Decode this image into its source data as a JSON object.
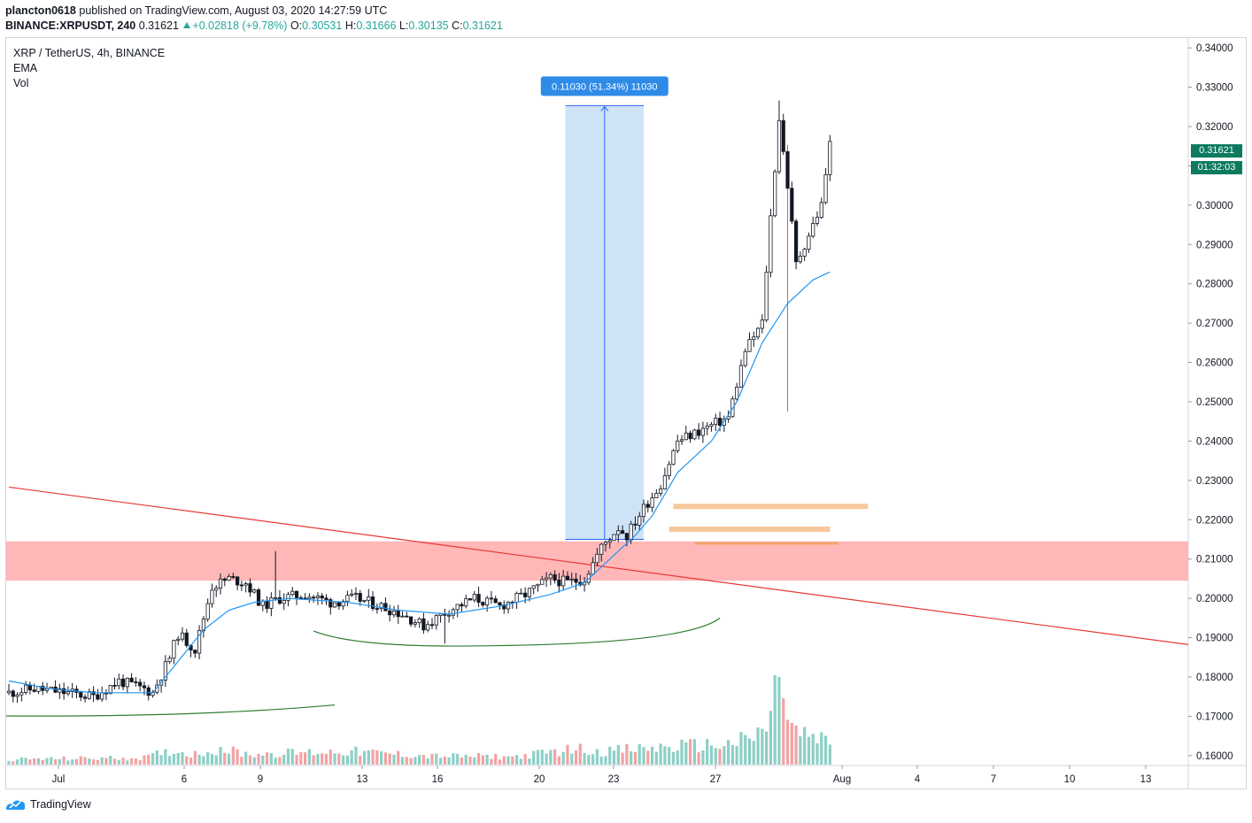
{
  "header": {
    "user": "plancton0618",
    "published": "published on TradingView.com, August 03, 2020 14:27:59 UTC",
    "symbol": "BINANCE:XRPUSDT, 240",
    "last": "0.31621",
    "change": "+0.02818 (+9.78%)",
    "o_label": "O:",
    "o_value": "0.30531",
    "h_label": "H:",
    "h_value": "0.31666",
    "l_label": "L:",
    "l_value": "0.30135",
    "c_label": "C:",
    "c_value": "0.31621"
  },
  "legend": {
    "title": "XRP / TetherUS, 4h, BINANCE",
    "ema": "EMA",
    "vol": "Vol"
  },
  "price_tag": {
    "price": "0.31621",
    "countdown": "01:32:03"
  },
  "measure_label": "0.11030 (51.34%) 11030",
  "footer": {
    "brand": "TradingView"
  },
  "colors": {
    "up": "#26a69a",
    "down": "#ef5350",
    "candle_up_body": "#ffffff",
    "candle_down_body": "#131722",
    "ema": "#2196f3",
    "trendline": "#e53935",
    "zone": "#ffb7b7",
    "measure": "#cfe3f7",
    "curve": "#2e7d32",
    "level": "#f7c89b",
    "tag": "#0c7a5f"
  },
  "chart_data": {
    "type": "candlestick",
    "title": "XRP / TetherUS, 4h, BINANCE",
    "yticks": [
      "0.16000",
      "0.17000",
      "0.18000",
      "0.19000",
      "0.20000",
      "0.21000",
      "0.22000",
      "0.23000",
      "0.24000",
      "0.25000",
      "0.26000",
      "0.27000",
      "0.28000",
      "0.29000",
      "0.30000",
      "0.31000",
      "0.32000",
      "0.33000",
      "0.34000"
    ],
    "ylim": [
      0.1575,
      0.3425
    ],
    "xticks": [
      "Jul",
      "6",
      "9",
      "13",
      "16",
      "20",
      "23",
      "27",
      "Aug",
      "4",
      "7",
      "10",
      "13"
    ],
    "close_path": [
      [
        0,
        0.176
      ],
      [
        6,
        0.177
      ],
      [
        14,
        0.176
      ],
      [
        20,
        0.175
      ],
      [
        26,
        0.179
      ],
      [
        32,
        0.177
      ],
      [
        34,
        0.176
      ],
      [
        38,
        0.185
      ],
      [
        40,
        0.191
      ],
      [
        44,
        0.187
      ],
      [
        48,
        0.203
      ],
      [
        52,
        0.205
      ],
      [
        56,
        0.204
      ],
      [
        60,
        0.198
      ],
      [
        64,
        0.2
      ],
      [
        70,
        0.201
      ],
      [
        76,
        0.199
      ],
      [
        82,
        0.2
      ],
      [
        88,
        0.198
      ],
      [
        93,
        0.196
      ],
      [
        98,
        0.193
      ],
      [
        104,
        0.197
      ],
      [
        110,
        0.2
      ],
      [
        116,
        0.198
      ],
      [
        122,
        0.201
      ],
      [
        128,
        0.205
      ],
      [
        132,
        0.204
      ],
      [
        136,
        0.205
      ],
      [
        140,
        0.213
      ],
      [
        144,
        0.218
      ],
      [
        146,
        0.216
      ],
      [
        150,
        0.223
      ],
      [
        154,
        0.229
      ],
      [
        158,
        0.24
      ],
      [
        162,
        0.242
      ],
      [
        166,
        0.244
      ],
      [
        170,
        0.246
      ],
      [
        174,
        0.263
      ],
      [
        178,
        0.27
      ],
      [
        180,
        0.297
      ],
      [
        182,
        0.322
      ],
      [
        184,
        0.305
      ],
      [
        186,
        0.285
      ],
      [
        188,
        0.29
      ],
      [
        190,
        0.295
      ],
      [
        192,
        0.3
      ],
      [
        193,
        0.308
      ],
      [
        194,
        0.31621
      ]
    ],
    "ema_path": [
      [
        0,
        0.179
      ],
      [
        10,
        0.177
      ],
      [
        20,
        0.176
      ],
      [
        34,
        0.176
      ],
      [
        40,
        0.184
      ],
      [
        46,
        0.192
      ],
      [
        52,
        0.197
      ],
      [
        58,
        0.199
      ],
      [
        66,
        0.2
      ],
      [
        80,
        0.199
      ],
      [
        92,
        0.197
      ],
      [
        104,
        0.196
      ],
      [
        116,
        0.198
      ],
      [
        128,
        0.201
      ],
      [
        136,
        0.204
      ],
      [
        142,
        0.21
      ],
      [
        148,
        0.216
      ],
      [
        152,
        0.221
      ],
      [
        158,
        0.232
      ],
      [
        166,
        0.24
      ],
      [
        172,
        0.25
      ],
      [
        178,
        0.265
      ],
      [
        184,
        0.275
      ],
      [
        190,
        0.281
      ],
      [
        194,
        0.283
      ]
    ],
    "volume_path": [
      [
        0,
        1
      ],
      [
        32,
        1.3
      ],
      [
        38,
        2.5
      ],
      [
        44,
        2.0
      ],
      [
        50,
        3
      ],
      [
        56,
        2.0
      ],
      [
        80,
        2.5
      ],
      [
        100,
        1.6
      ],
      [
        120,
        1.5
      ],
      [
        134,
        3
      ],
      [
        140,
        2.5
      ],
      [
        150,
        3
      ],
      [
        160,
        3.5
      ],
      [
        170,
        3.8
      ],
      [
        176,
        5
      ],
      [
        180,
        8
      ],
      [
        182,
        20
      ],
      [
        184,
        8
      ],
      [
        186,
        6
      ],
      [
        190,
        5
      ],
      [
        194,
        4
      ]
    ],
    "bar_count": 195,
    "start_date": "2020-06-28",
    "last_bar_date": "2020-08-03",
    "zone": [
      0.2045,
      0.2145
    ],
    "trendline": [
      [
        "2020-06-28",
        0.2283
      ],
      [
        "2020-08-15",
        0.1869
      ]
    ],
    "measure": {
      "from": 0.215,
      "to": 0.3253,
      "label": "0.11030 (51.34%) 11030"
    },
    "levels": [
      0.2234,
      0.2176,
      0.214
    ],
    "last_price": 0.31621
  }
}
